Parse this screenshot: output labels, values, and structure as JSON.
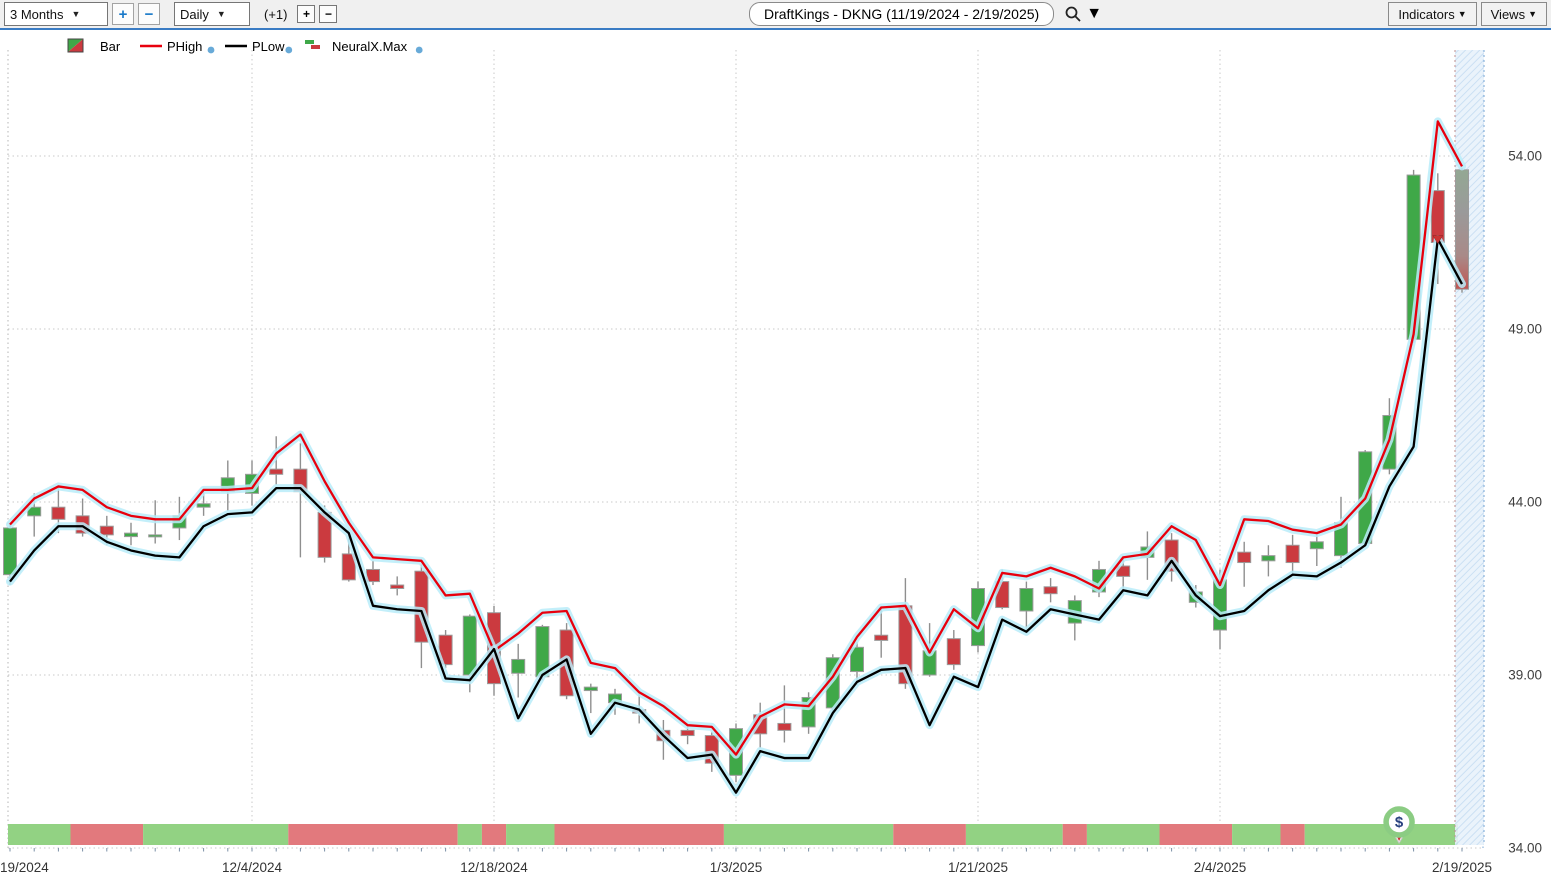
{
  "toolbar": {
    "range_select": {
      "value": "3 Months"
    },
    "range_zoom_in": "+",
    "range_zoom_out": "−",
    "period_select": {
      "value": "Daily"
    },
    "offset_indicator": "(+1)",
    "offset_plus": "+",
    "offset_minus": "−",
    "symbol_search": {
      "value": "DraftKings - DKNG (11/19/2024 - 2/19/2025)"
    },
    "indicators_button": "Indicators",
    "views_button": "Views"
  },
  "legend": {
    "items": [
      {
        "id": "bar",
        "label": "Bar",
        "swatch": "split-square",
        "has_info_dot": false
      },
      {
        "id": "phigh",
        "label": "PHigh",
        "swatch": "line",
        "color": "#e8000d",
        "has_info_dot": true
      },
      {
        "id": "plow",
        "label": "PLow",
        "swatch": "line",
        "color": "#000000",
        "has_info_dot": true
      },
      {
        "id": "neuralx",
        "label": "NeuralX.Max",
        "swatch": "step-bars",
        "has_info_dot": true
      }
    ]
  },
  "colors": {
    "candle_up": "#3fa848",
    "candle_down": "#cb3a3f",
    "candle_border": "#9b9b9b",
    "wick": "#8f8f8f",
    "phigh_line": "#e8000d",
    "plow_line": "#000000",
    "line_glow": "#b8ecf9",
    "strip_up": "#92d283",
    "strip_down": "#e2797d",
    "grid": "#c9c9c9",
    "axis_text": "#3f3f3f",
    "selection_fill": "#e8f2fb",
    "selection_hatch": "#c5dcf2",
    "marker_ring": "#8bcc83",
    "marker_dollar": "#28417e",
    "marker_pointer": "#cc3333",
    "toolbar_accent": "#3a7cc4"
  },
  "chart_data": {
    "type": "candlestick",
    "title": "DraftKings - DKNG (11/19/2024 - 2/19/2025)",
    "grid": true,
    "legend_position": "top-left",
    "y_axis": {
      "side": "right",
      "ticks": [
        54,
        49,
        44,
        39,
        34
      ],
      "tick_labels": [
        "54.00",
        "49.00",
        "44.00",
        "39.00",
        "34.00"
      ],
      "range": [
        34,
        56.8
      ]
    },
    "x_axis": {
      "tick_indices": [
        0,
        10,
        20,
        30,
        40,
        50,
        60
      ],
      "tick_labels": [
        "19/2024",
        "12/4/2024",
        "12/18/2024",
        "1/3/2025",
        "1/21/2025",
        "2/4/2025",
        "2/19/2025"
      ]
    },
    "dates": [
      "11/19/2024",
      "11/20/2024",
      "11/21/2024",
      "11/22/2024",
      "11/25/2024",
      "11/26/2024",
      "11/27/2024",
      "11/29/2024",
      "12/2/2024",
      "12/3/2024",
      "12/4/2024",
      "12/5/2024",
      "12/6/2024",
      "12/9/2024",
      "12/10/2024",
      "12/11/2024",
      "12/12/2024",
      "12/13/2024",
      "12/16/2024",
      "12/17/2024",
      "12/18/2024",
      "12/19/2024",
      "12/20/2024",
      "12/23/2024",
      "12/24/2024",
      "12/26/2024",
      "12/27/2024",
      "12/30/2024",
      "12/31/2024",
      "1/2/2025",
      "1/3/2025",
      "1/6/2025",
      "1/7/2025",
      "1/8/2025",
      "1/10/2025",
      "1/13/2025",
      "1/14/2025",
      "1/15/2025",
      "1/16/2025",
      "1/17/2025",
      "1/21/2025",
      "1/22/2025",
      "1/23/2025",
      "1/24/2025",
      "1/27/2025",
      "1/28/2025",
      "1/29/2025",
      "1/30/2025",
      "1/31/2025",
      "2/3/2025",
      "2/4/2025",
      "2/5/2025",
      "2/6/2025",
      "2/7/2025",
      "2/10/2025",
      "2/11/2025",
      "2/12/2025",
      "2/13/2025",
      "2/14/2025",
      "2/18/2025",
      "2/19/2025"
    ],
    "ohlc": [
      [
        41.9,
        43.4,
        41.6,
        43.25
      ],
      [
        43.6,
        44.25,
        43.0,
        43.85
      ],
      [
        43.85,
        44.45,
        43.1,
        43.5
      ],
      [
        43.6,
        44.1,
        43.0,
        43.1
      ],
      [
        43.3,
        43.6,
        42.75,
        43.05
      ],
      [
        43.0,
        43.4,
        42.75,
        43.1
      ],
      [
        43.0,
        44.05,
        42.8,
        43.05
      ],
      [
        43.25,
        44.15,
        42.9,
        43.6
      ],
      [
        43.85,
        44.3,
        43.6,
        43.95
      ],
      [
        44.3,
        45.2,
        43.75,
        44.7
      ],
      [
        44.25,
        45.2,
        43.9,
        44.8
      ],
      [
        44.95,
        45.9,
        44.5,
        44.8
      ],
      [
        44.95,
        45.7,
        42.4,
        44.3
      ],
      [
        43.7,
        43.9,
        42.25,
        42.4
      ],
      [
        42.5,
        43.2,
        41.7,
        41.75
      ],
      [
        42.05,
        42.3,
        41.6,
        41.7
      ],
      [
        41.6,
        41.85,
        41.3,
        41.5
      ],
      [
        42.0,
        42.2,
        39.2,
        39.95
      ],
      [
        40.15,
        40.3,
        39.2,
        39.3
      ],
      [
        39.0,
        40.75,
        38.5,
        40.7
      ],
      [
        40.8,
        41.0,
        38.4,
        38.75
      ],
      [
        39.05,
        39.9,
        38.35,
        39.45
      ],
      [
        38.95,
        40.45,
        38.85,
        40.4
      ],
      [
        40.3,
        40.5,
        38.3,
        38.4
      ],
      [
        38.55,
        38.75,
        37.9,
        38.65
      ],
      [
        38.2,
        38.6,
        37.85,
        38.45
      ],
      [
        38.0,
        38.5,
        37.6,
        37.9
      ],
      [
        37.4,
        37.7,
        36.55,
        37.1
      ],
      [
        37.4,
        37.6,
        37.0,
        37.25
      ],
      [
        37.25,
        37.35,
        36.2,
        36.45
      ],
      [
        36.1,
        37.6,
        35.9,
        37.45
      ],
      [
        37.85,
        38.2,
        36.9,
        37.3
      ],
      [
        37.6,
        38.7,
        37.05,
        37.4
      ],
      [
        37.5,
        38.5,
        37.3,
        38.35
      ],
      [
        38.05,
        39.6,
        37.95,
        39.5
      ],
      [
        39.1,
        39.95,
        38.7,
        39.8
      ],
      [
        40.15,
        40.95,
        39.5,
        40.0
      ],
      [
        41.0,
        41.8,
        38.6,
        38.75
      ],
      [
        39.0,
        40.5,
        38.95,
        39.7
      ],
      [
        40.05,
        40.3,
        39.15,
        39.3
      ],
      [
        39.85,
        41.7,
        39.65,
        41.5
      ],
      [
        41.7,
        42.05,
        40.9,
        40.95
      ],
      [
        40.85,
        41.7,
        40.2,
        41.5
      ],
      [
        41.55,
        41.8,
        41.1,
        41.35
      ],
      [
        40.5,
        41.3,
        40.0,
        41.15
      ],
      [
        41.4,
        42.3,
        41.25,
        42.05
      ],
      [
        42.15,
        42.4,
        41.3,
        41.85
      ],
      [
        42.4,
        43.15,
        41.75,
        42.7
      ],
      [
        42.9,
        43.1,
        41.7,
        42.0
      ],
      [
        41.1,
        41.6,
        40.95,
        41.4
      ],
      [
        40.3,
        42.05,
        39.75,
        41.75
      ],
      [
        42.55,
        42.85,
        41.55,
        42.25
      ],
      [
        42.3,
        42.75,
        41.85,
        42.45
      ],
      [
        42.75,
        43.05,
        41.9,
        42.25
      ],
      [
        42.65,
        43.1,
        42.15,
        42.85
      ],
      [
        42.45,
        44.15,
        42.1,
        43.4
      ],
      [
        42.8,
        45.5,
        42.7,
        45.45
      ],
      [
        44.95,
        47.0,
        44.8,
        46.5
      ],
      [
        48.7,
        53.6,
        48.6,
        53.45
      ],
      [
        53.0,
        53.5,
        50.3,
        51.5
      ],
      [
        53.6,
        53.65,
        50.05,
        50.15
      ]
    ],
    "series": [
      {
        "name": "PHigh",
        "color": "#e8000d",
        "values": [
          43.35,
          44.1,
          44.45,
          44.35,
          43.85,
          43.6,
          43.5,
          43.5,
          44.35,
          44.35,
          44.4,
          45.4,
          45.95,
          44.6,
          43.4,
          42.4,
          42.35,
          42.3,
          41.3,
          41.35,
          39.7,
          40.2,
          40.8,
          40.85,
          39.35,
          39.2,
          38.5,
          38.1,
          37.55,
          37.5,
          36.7,
          37.8,
          38.15,
          38.1,
          38.95,
          40.1,
          40.95,
          41.0,
          39.65,
          40.9,
          40.35,
          41.95,
          41.85,
          42.1,
          41.85,
          41.5,
          42.4,
          42.5,
          43.3,
          42.9,
          41.6,
          43.5,
          43.45,
          43.2,
          43.1,
          43.35,
          44.1,
          45.8,
          48.85,
          55.0,
          53.7
        ]
      },
      {
        "name": "PLow",
        "color": "#000000",
        "values": [
          41.7,
          42.6,
          43.3,
          43.3,
          42.85,
          42.6,
          42.45,
          42.4,
          43.3,
          43.65,
          43.7,
          44.4,
          44.4,
          43.7,
          43.1,
          41.0,
          40.9,
          40.85,
          38.9,
          38.85,
          39.75,
          37.75,
          39.0,
          39.45,
          37.3,
          38.2,
          38.0,
          37.25,
          36.6,
          36.7,
          35.6,
          36.8,
          36.6,
          36.6,
          37.9,
          38.8,
          39.15,
          39.2,
          37.55,
          38.95,
          38.65,
          40.6,
          40.25,
          40.9,
          40.75,
          40.6,
          41.45,
          41.3,
          42.3,
          41.3,
          40.7,
          40.85,
          41.45,
          41.9,
          41.85,
          42.25,
          42.75,
          44.45,
          45.6,
          51.6,
          50.3
        ]
      }
    ],
    "neuralx_strip": "gggrrrggggggrrrrrrrgrggrrrrrrrgggggggrrrggggrgggrrrggrggggggg",
    "sell_arrow": {
      "index": 59,
      "price": 51.5
    },
    "dollar_marker": {
      "index": 57.4,
      "label": "$"
    },
    "selected_bar_index": 60
  }
}
